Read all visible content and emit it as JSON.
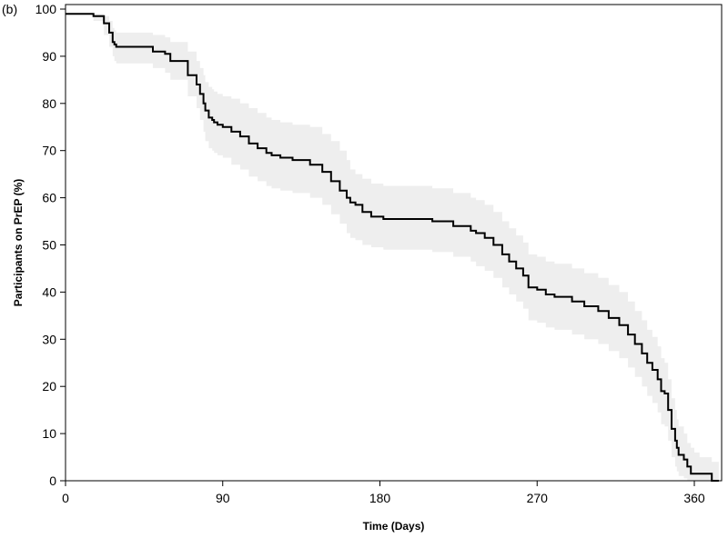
{
  "panel_label": "(b)",
  "chart_data": {
    "type": "line",
    "style": "step",
    "xlabel": "Time (Days)",
    "ylabel": "Participants on PrEP (%)",
    "xlim": [
      0,
      375
    ],
    "ylim": [
      0,
      100
    ],
    "xticks": [
      0,
      90,
      180,
      270,
      360
    ],
    "yticks": [
      0,
      10,
      20,
      30,
      40,
      50,
      60,
      70,
      80,
      90,
      100
    ],
    "grid": false,
    "colors": {
      "line": "#000000",
      "band": "#eeeeee",
      "axis": "#000000"
    },
    "series": [
      {
        "x": [
          0,
          16,
          22,
          25,
          27,
          28,
          29,
          50,
          57,
          60,
          70,
          75,
          77,
          79,
          80,
          82,
          84,
          85,
          87,
          90,
          95,
          100,
          105,
          110,
          115,
          118,
          123,
          130,
          140,
          147,
          152,
          157,
          161,
          163,
          166,
          170,
          175,
          182,
          210,
          222,
          232,
          235,
          240,
          245,
          250,
          254,
          258,
          262,
          265,
          270,
          275,
          280,
          290,
          297,
          305,
          311,
          317,
          322,
          326,
          330,
          333,
          336,
          339,
          341,
          343,
          345,
          347,
          349,
          350,
          351,
          354,
          356,
          358,
          360,
          363,
          370
        ],
        "values": [
          99,
          98.5,
          97,
          95,
          93,
          92.5,
          92,
          91,
          90.5,
          89,
          86,
          84,
          82,
          80,
          78.5,
          77,
          76.5,
          76,
          75.5,
          75,
          74,
          73,
          71.5,
          70.5,
          69.5,
          69,
          68.5,
          68,
          67,
          65.5,
          63.5,
          61.5,
          60,
          59,
          58.5,
          57,
          56,
          55.5,
          55,
          54,
          53,
          52.5,
          51.5,
          50,
          48,
          46.5,
          45,
          43.5,
          41,
          40.5,
          39.5,
          39,
          38,
          37,
          36,
          34.5,
          33,
          31,
          29,
          27,
          25,
          23.5,
          21.5,
          19,
          18.5,
          15,
          11,
          8.5,
          7,
          5.5,
          4.5,
          3,
          1.5,
          1.5,
          1.5,
          0
        ],
        "upper": [
          99,
          99,
          98.5,
          97.5,
          96,
          95.5,
          95,
          94.5,
          94,
          93,
          91,
          89,
          87.5,
          86,
          84.5,
          83.5,
          83,
          82.5,
          82,
          81.5,
          81,
          80,
          79,
          78,
          77,
          76.5,
          76,
          75.5,
          75,
          73.5,
          72,
          70,
          68,
          66,
          65,
          64,
          63,
          62.5,
          62,
          61,
          60,
          59.5,
          58.5,
          57,
          55,
          53.5,
          52,
          50.5,
          48,
          47.5,
          46.5,
          46,
          45,
          44,
          43,
          41.5,
          40,
          38,
          36,
          34,
          32,
          30.5,
          28.5,
          26,
          25,
          21.5,
          17.5,
          15,
          13,
          11.5,
          10,
          8,
          7,
          6,
          5,
          4
        ],
        "lower": [
          99,
          97.5,
          94.5,
          92,
          90,
          89,
          88.5,
          87.5,
          86.5,
          85,
          81.5,
          79,
          76.5,
          74,
          72,
          70.5,
          70,
          69.5,
          69,
          68.5,
          67,
          66,
          64.5,
          63.5,
          62.5,
          62,
          61.5,
          61,
          60,
          58.5,
          56.5,
          54.5,
          52.5,
          51.5,
          51,
          50,
          49.5,
          49,
          48.5,
          47.5,
          46.5,
          45.5,
          44.5,
          43,
          41,
          39.5,
          38,
          36.5,
          34,
          33.5,
          32.5,
          32,
          31,
          30,
          29,
          27.5,
          26,
          24,
          22,
          20,
          18,
          16.5,
          14.5,
          12,
          11.5,
          8.5,
          5,
          3,
          2,
          1,
          0.5,
          0,
          0,
          0,
          0,
          0
        ]
      }
    ]
  }
}
